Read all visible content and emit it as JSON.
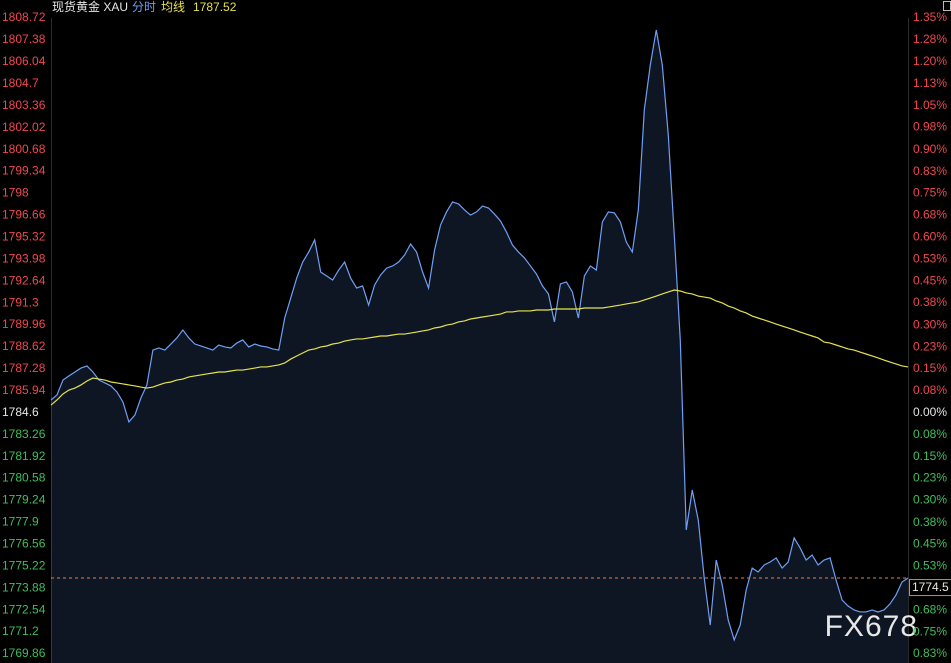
{
  "chart_data": {
    "type": "line",
    "title": "现货黄金 XAU",
    "average_value": 1787.52,
    "ylim": [
      1769.86,
      1808.72
    ],
    "yticks": [
      1808.72,
      1807.38,
      1806.04,
      1804.7,
      1803.36,
      1802.02,
      1800.68,
      1799.34,
      1798.0,
      1796.66,
      1795.32,
      1793.98,
      1792.64,
      1791.3,
      1789.96,
      1788.62,
      1787.28,
      1785.94,
      1784.6,
      1783.26,
      1781.92,
      1780.58,
      1779.24,
      1777.9,
      1776.56,
      1775.22,
      1773.88,
      1772.54,
      1771.2,
      1769.86
    ],
    "y2lim": [
      -0.826,
      1.352
    ],
    "y2ticks": [
      {
        "value": 1.352,
        "label": "1.35%"
      },
      {
        "value": 1.277,
        "label": "1.28%"
      },
      {
        "value": 1.202,
        "label": "1.20%"
      },
      {
        "value": 1.127,
        "label": "1.13%"
      },
      {
        "value": 1.052,
        "label": "1.05%"
      },
      {
        "value": 0.977,
        "label": "0.98%"
      },
      {
        "value": 0.901,
        "label": "0.90%"
      },
      {
        "value": 0.826,
        "label": "0.83%"
      },
      {
        "value": 0.751,
        "label": "0.75%"
      },
      {
        "value": 0.676,
        "label": "0.68%"
      },
      {
        "value": 0.601,
        "label": "0.60%"
      },
      {
        "value": 0.526,
        "label": "0.53%"
      },
      {
        "value": 0.451,
        "label": "0.45%"
      },
      {
        "value": 0.376,
        "label": "0.38%"
      },
      {
        "value": 0.3,
        "label": "0.30%"
      },
      {
        "value": 0.225,
        "label": "0.23%"
      },
      {
        "value": 0.15,
        "label": "0.15%"
      },
      {
        "value": 0.075,
        "label": "0.08%"
      },
      {
        "value": 0,
        "label": "0.00%"
      },
      {
        "value": -0.075,
        "label": "0.08%"
      },
      {
        "value": -0.15,
        "label": "0.15%"
      },
      {
        "value": -0.225,
        "label": "0.23%"
      },
      {
        "value": -0.3,
        "label": "0.30%"
      },
      {
        "value": -0.376,
        "label": "0.38%"
      },
      {
        "value": -0.451,
        "label": "0.45%"
      },
      {
        "value": -0.526,
        "label": "0.53%"
      },
      {
        "value": -0.676,
        "label": "0.68%"
      },
      {
        "value": -0.751,
        "label": "0.75%"
      },
      {
        "value": -0.826,
        "label": "0.83%"
      }
    ],
    "up_color": "#f0474f",
    "down_color": "#3fbf5a",
    "flat_color": "#e6e6e6",
    "last_price": 1774.5,
    "last_price_color": "#e8803c",
    "watermark": "FX678",
    "series": [
      {
        "name": "分时",
        "color": "#6f9ff5",
        "fill": "rgba(70,110,180,0.2)",
        "values": [
          1785.38,
          1785.69,
          1786.6,
          1786.85,
          1787.09,
          1787.33,
          1787.46,
          1787.09,
          1786.6,
          1786.42,
          1786.24,
          1785.87,
          1785.26,
          1784.04,
          1784.46,
          1785.5,
          1786.3,
          1788.43,
          1788.56,
          1788.43,
          1788.8,
          1789.17,
          1789.66,
          1789.17,
          1788.8,
          1788.68,
          1788.56,
          1788.43,
          1788.74,
          1788.62,
          1788.56,
          1788.86,
          1789.05,
          1788.62,
          1788.8,
          1788.68,
          1788.62,
          1788.5,
          1788.43,
          1790.39,
          1791.61,
          1792.83,
          1793.81,
          1794.42,
          1795.16,
          1793.2,
          1792.96,
          1792.71,
          1793.32,
          1793.81,
          1792.83,
          1792.22,
          1792.35,
          1791.18,
          1792.41,
          1793.02,
          1793.44,
          1793.57,
          1793.81,
          1794.24,
          1794.91,
          1794.42,
          1793.2,
          1792.22,
          1794.54,
          1796.07,
          1796.87,
          1797.48,
          1797.36,
          1796.99,
          1796.68,
          1796.87,
          1797.23,
          1797.11,
          1796.74,
          1796.32,
          1795.64,
          1794.85,
          1794.42,
          1794.06,
          1793.57,
          1793.08,
          1792.35,
          1791.86,
          1790.15,
          1792.47,
          1792.59,
          1791.98,
          1790.39,
          1792.96,
          1793.57,
          1793.32,
          1796.26,
          1796.87,
          1796.81,
          1796.26,
          1795.03,
          1794.42,
          1796.99,
          1803.1,
          1805.85,
          1807.99,
          1805.85,
          1801.57,
          1795.46,
          1789.05,
          1777.44,
          1779.88,
          1778.05,
          1774.5,
          1771.63,
          1775.6,
          1774.08,
          1771.94,
          1770.72,
          1771.63,
          1773.77,
          1775.11,
          1774.87,
          1775.3,
          1775.48,
          1775.73,
          1775.11,
          1775.48,
          1776.95,
          1776.34,
          1775.6,
          1775.91,
          1775.3,
          1775.6,
          1775.73,
          1774.38,
          1773.16,
          1772.79,
          1772.55,
          1772.43,
          1772.43,
          1772.55,
          1772.43,
          1772.55,
          1772.92,
          1773.47,
          1774.26,
          1774.5
        ]
      },
      {
        "name": "均线",
        "color": "#e6e24c",
        "values": [
          1785.07,
          1785.38,
          1785.75,
          1785.99,
          1786.11,
          1786.3,
          1786.54,
          1786.72,
          1786.66,
          1786.6,
          1786.48,
          1786.42,
          1786.36,
          1786.3,
          1786.24,
          1786.17,
          1786.11,
          1786.17,
          1786.3,
          1786.42,
          1786.48,
          1786.6,
          1786.66,
          1786.79,
          1786.85,
          1786.91,
          1786.97,
          1787.03,
          1787.09,
          1787.09,
          1787.15,
          1787.21,
          1787.21,
          1787.27,
          1787.33,
          1787.4,
          1787.4,
          1787.46,
          1787.52,
          1787.64,
          1787.88,
          1788.07,
          1788.25,
          1788.43,
          1788.5,
          1788.62,
          1788.68,
          1788.8,
          1788.86,
          1788.98,
          1789.05,
          1789.11,
          1789.11,
          1789.17,
          1789.23,
          1789.29,
          1789.29,
          1789.35,
          1789.41,
          1789.41,
          1789.47,
          1789.53,
          1789.6,
          1789.66,
          1789.78,
          1789.84,
          1789.96,
          1790.02,
          1790.15,
          1790.21,
          1790.33,
          1790.39,
          1790.45,
          1790.51,
          1790.57,
          1790.63,
          1790.76,
          1790.76,
          1790.82,
          1790.82,
          1790.82,
          1790.88,
          1790.88,
          1790.88,
          1790.94,
          1790.94,
          1790.94,
          1790.94,
          1790.94,
          1791.0,
          1791.0,
          1791.0,
          1791.0,
          1791.06,
          1791.12,
          1791.18,
          1791.25,
          1791.31,
          1791.37,
          1791.49,
          1791.61,
          1791.73,
          1791.86,
          1791.98,
          1792.1,
          1792.04,
          1791.92,
          1791.86,
          1791.73,
          1791.67,
          1791.61,
          1791.43,
          1791.31,
          1791.12,
          1791.0,
          1790.82,
          1790.7,
          1790.51,
          1790.39,
          1790.27,
          1790.15,
          1790.02,
          1789.9,
          1789.78,
          1789.66,
          1789.53,
          1789.41,
          1789.29,
          1789.17,
          1788.92,
          1788.86,
          1788.74,
          1788.62,
          1788.5,
          1788.43,
          1788.31,
          1788.19,
          1788.07,
          1787.95,
          1787.82,
          1787.7,
          1787.58,
          1787.46,
          1787.4
        ]
      }
    ]
  }
}
